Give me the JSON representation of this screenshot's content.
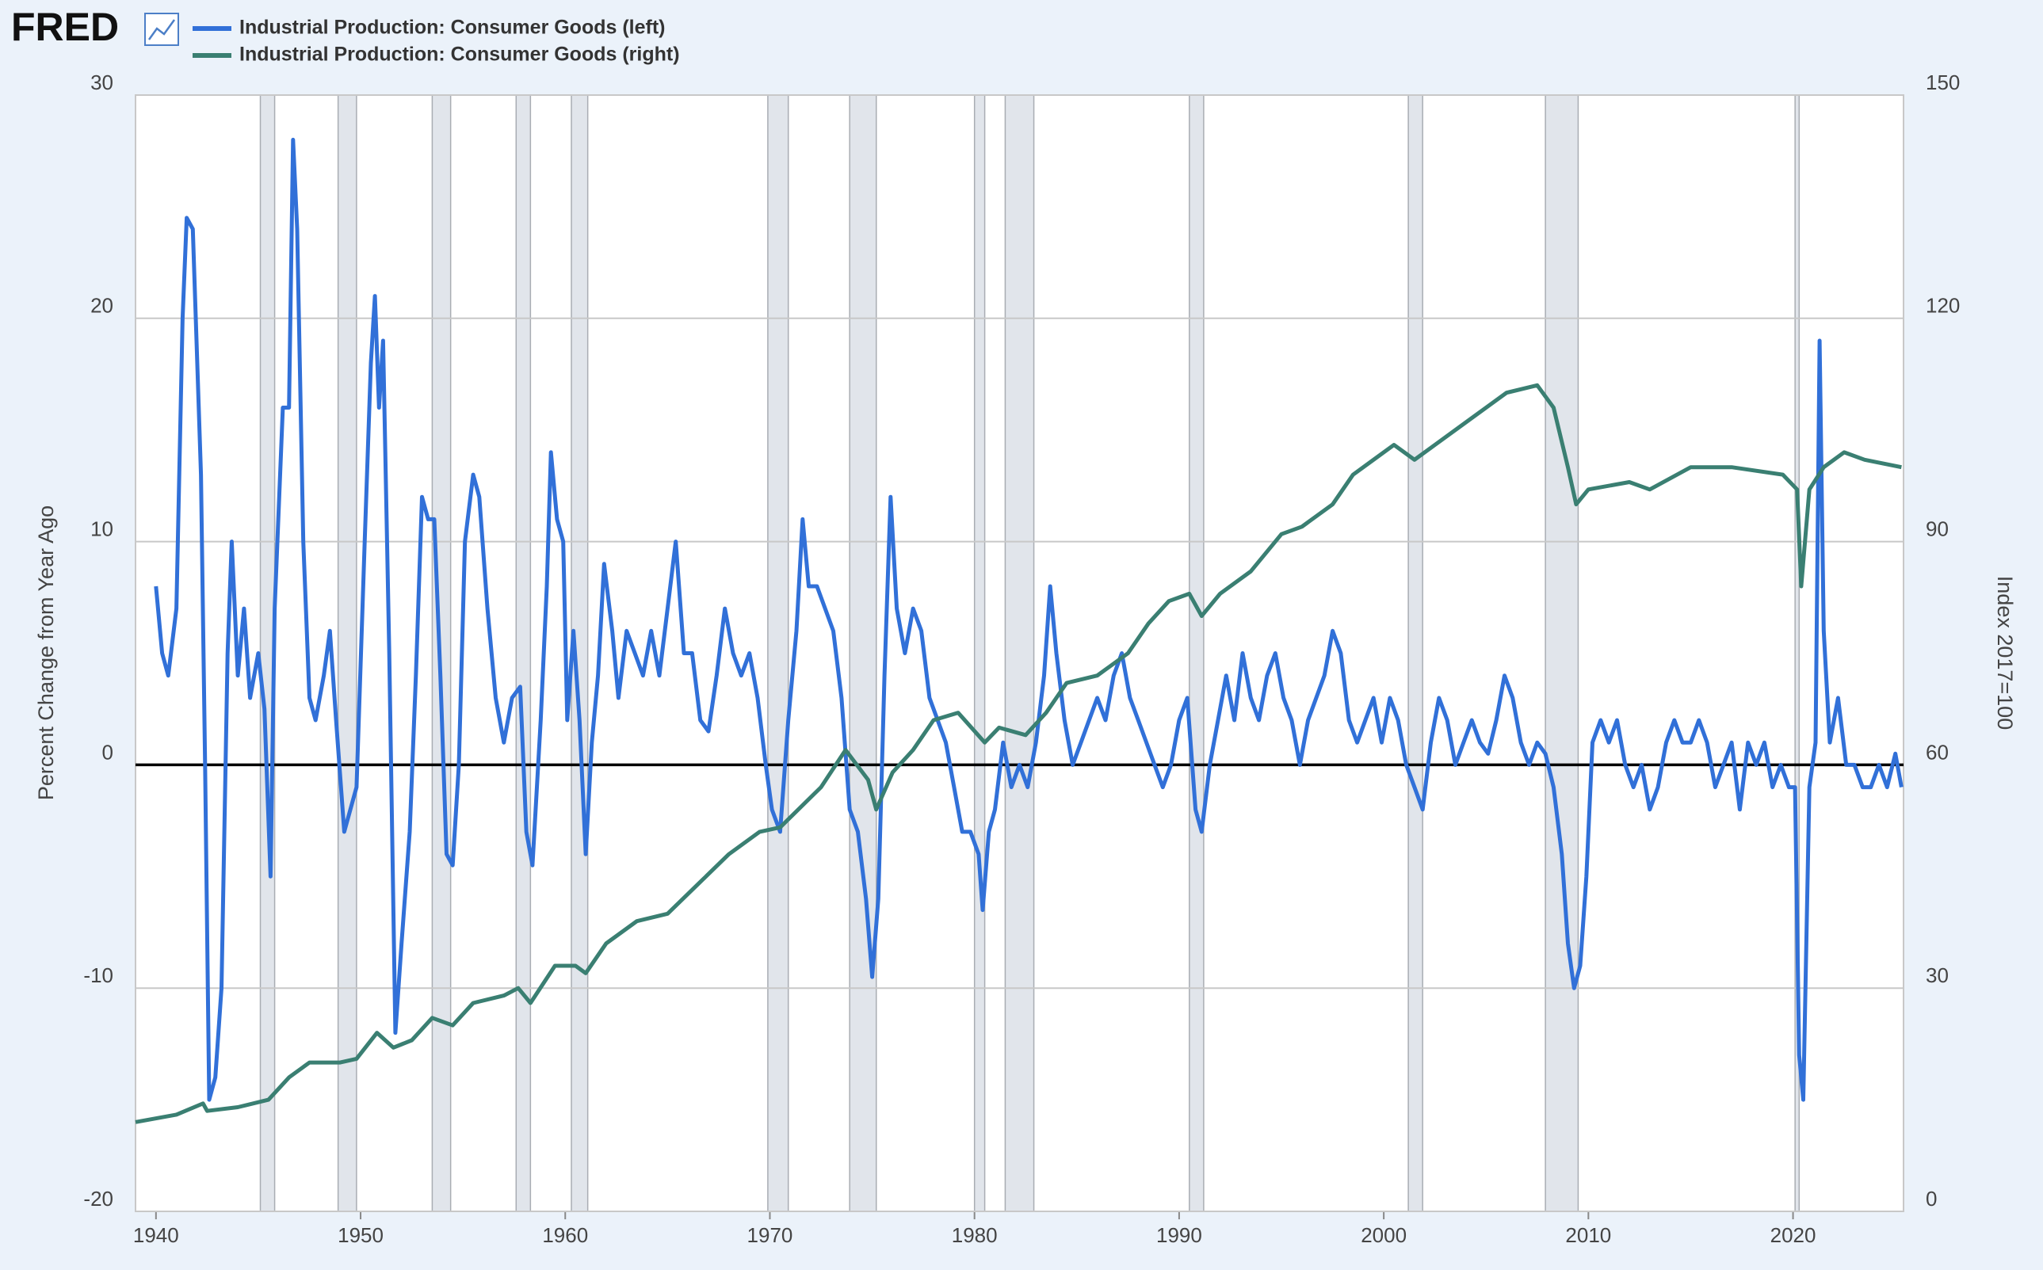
{
  "chart_data": {
    "type": "line",
    "logo": "FRED",
    "ylabel": "Percent Change from Year Ago",
    "y2label": "Index 2017=100",
    "xlim": [
      1939,
      2025.4
    ],
    "xticks": [
      1940,
      1950,
      1960,
      1970,
      1980,
      1990,
      2000,
      2010,
      2020
    ],
    "ylim": [
      -20,
      30
    ],
    "yticks": [
      -20,
      -10,
      0,
      10,
      20,
      30
    ],
    "y2lim": [
      0,
      150
    ],
    "y2ticks": [
      0,
      30,
      60,
      90,
      120,
      150
    ],
    "grid": true,
    "zero_line": true,
    "legend": "top-left",
    "recessions": [
      [
        1945.1,
        1945.8
      ],
      [
        1948.9,
        1949.8
      ],
      [
        1953.5,
        1954.4
      ],
      [
        1957.6,
        1958.3
      ],
      [
        1960.3,
        1961.1
      ],
      [
        1969.9,
        1970.9
      ],
      [
        1973.9,
        1975.2
      ],
      [
        1980.0,
        1980.5
      ],
      [
        1981.5,
        1982.9
      ],
      [
        1990.5,
        1991.2
      ],
      [
        2001.2,
        2001.9
      ],
      [
        2007.9,
        2009.5
      ],
      [
        2020.1,
        2020.3
      ]
    ],
    "series": [
      {
        "name": "Industrial Production: Consumer Goods (left)",
        "color": "#3170d8",
        "axis": "y",
        "x": [
          1940.0,
          1940.3,
          1940.6,
          1941.0,
          1941.3,
          1941.5,
          1941.8,
          1942.2,
          1942.4,
          1942.6,
          1942.9,
          1943.2,
          1943.5,
          1943.7,
          1944.0,
          1944.3,
          1944.6,
          1945.0,
          1945.3,
          1945.6,
          1945.8,
          1946.2,
          1946.5,
          1946.7,
          1946.9,
          1947.2,
          1947.5,
          1947.8,
          1948.2,
          1948.5,
          1948.8,
          1949.2,
          1949.5,
          1949.8,
          1950.2,
          1950.5,
          1950.7,
          1950.9,
          1951.1,
          1951.4,
          1951.7,
          1952.0,
          1952.4,
          1952.7,
          1953.0,
          1953.3,
          1953.6,
          1953.9,
          1954.2,
          1954.5,
          1954.8,
          1955.1,
          1955.5,
          1955.8,
          1956.2,
          1956.6,
          1957.0,
          1957.4,
          1957.8,
          1958.1,
          1958.4,
          1958.8,
          1959.1,
          1959.3,
          1959.6,
          1959.9,
          1960.1,
          1960.4,
          1960.7,
          1961.0,
          1961.3,
          1961.6,
          1961.9,
          1962.3,
          1962.6,
          1963.0,
          1963.4,
          1963.8,
          1964.2,
          1964.6,
          1965.0,
          1965.4,
          1965.8,
          1966.2,
          1966.6,
          1967.0,
          1967.4,
          1967.8,
          1968.2,
          1968.6,
          1969.0,
          1969.4,
          1969.8,
          1970.1,
          1970.5,
          1970.9,
          1971.3,
          1971.6,
          1971.9,
          1972.3,
          1972.7,
          1973.1,
          1973.5,
          1973.9,
          1974.3,
          1974.7,
          1975.0,
          1975.3,
          1975.6,
          1975.9,
          1976.2,
          1976.6,
          1977.0,
          1977.4,
          1977.8,
          1978.2,
          1978.6,
          1979.0,
          1979.4,
          1979.8,
          1980.2,
          1980.4,
          1980.7,
          1981.0,
          1981.4,
          1981.8,
          1982.2,
          1982.6,
          1983.0,
          1983.4,
          1983.7,
          1984.0,
          1984.4,
          1984.8,
          1985.2,
          1985.6,
          1986.0,
          1986.4,
          1986.8,
          1987.2,
          1987.6,
          1988.0,
          1988.4,
          1988.8,
          1989.2,
          1989.6,
          1990.0,
          1990.4,
          1990.8,
          1991.1,
          1991.5,
          1991.9,
          1992.3,
          1992.7,
          1993.1,
          1993.5,
          1993.9,
          1994.3,
          1994.7,
          1995.1,
          1995.5,
          1995.9,
          1996.3,
          1996.7,
          1997.1,
          1997.5,
          1997.9,
          1998.3,
          1998.7,
          1999.1,
          1999.5,
          1999.9,
          2000.3,
          2000.7,
          2001.1,
          2001.5,
          2001.9,
          2002.3,
          2002.7,
          2003.1,
          2003.5,
          2003.9,
          2004.3,
          2004.7,
          2005.1,
          2005.5,
          2005.9,
          2006.3,
          2006.7,
          2007.1,
          2007.5,
          2007.9,
          2008.3,
          2008.7,
          2009.0,
          2009.3,
          2009.6,
          2009.9,
          2010.2,
          2010.6,
          2011.0,
          2011.4,
          2011.8,
          2012.2,
          2012.6,
          2013.0,
          2013.4,
          2013.8,
          2014.2,
          2014.6,
          2015.0,
          2015.4,
          2015.8,
          2016.2,
          2016.6,
          2017.0,
          2017.4,
          2017.8,
          2018.2,
          2018.6,
          2019.0,
          2019.4,
          2019.8,
          2020.1,
          2020.3,
          2020.5,
          2020.8,
          2021.1,
          2021.3,
          2021.5,
          2021.8,
          2022.2,
          2022.6,
          2023.0,
          2023.4,
          2023.8,
          2024.2,
          2024.6,
          2025.0,
          2025.3
        ],
        "values": [
          8,
          5,
          4,
          7,
          20,
          24.5,
          24,
          13,
          0,
          -15,
          -14,
          -10,
          5,
          10,
          4,
          7,
          3,
          5,
          2.5,
          -5,
          7,
          16,
          16,
          28,
          24,
          10,
          3,
          2,
          4,
          6,
          2,
          -3,
          -2,
          -1,
          10,
          18,
          21,
          16,
          19,
          5,
          -12,
          -8,
          -3,
          4,
          12,
          11,
          11,
          4,
          -4,
          -4.5,
          0,
          10,
          13,
          12,
          7,
          3,
          1,
          3,
          3.5,
          -3,
          -4.5,
          2,
          8,
          14,
          11,
          10,
          2,
          6,
          2,
          -4,
          1,
          4,
          9,
          6,
          3,
          6,
          5,
          4,
          6,
          4,
          7,
          10,
          5,
          5,
          2,
          1.5,
          4,
          7,
          5,
          4,
          5,
          3,
          0,
          -2,
          -3,
          2,
          6,
          11,
          8,
          8,
          7,
          6,
          3,
          -2,
          -3,
          -6,
          -9.5,
          -6,
          4,
          12,
          7,
          5,
          7,
          6,
          3,
          2,
          1,
          -1,
          -3,
          -3,
          -4,
          -6.5,
          -3,
          -2,
          1,
          -1,
          0,
          -1,
          1,
          4,
          8,
          5,
          2,
          0,
          1,
          2,
          3,
          2,
          4,
          5,
          3,
          2,
          1,
          0,
          -1,
          0,
          2,
          3,
          -2,
          -3,
          0,
          2,
          4,
          2,
          5,
          3,
          2,
          4,
          5,
          3,
          2,
          0,
          2,
          3,
          4,
          6,
          5,
          2,
          1,
          2,
          3,
          1,
          3,
          2,
          0,
          -1,
          -2,
          1,
          3,
          2,
          0,
          1,
          2,
          1,
          0.5,
          2,
          4,
          3,
          1,
          0,
          1,
          0.5,
          -1,
          -4,
          -8,
          -10,
          -9,
          -5,
          1,
          2,
          1,
          2,
          0,
          -1,
          0,
          -2,
          -1,
          1,
          2,
          1,
          1,
          2,
          1,
          -1,
          0,
          1,
          -2,
          1,
          0,
          1,
          -1,
          0,
          -1,
          -1,
          -13,
          -15,
          -1,
          1,
          19,
          6,
          1,
          3,
          0,
          0,
          -1,
          -1,
          0,
          -1,
          0.5,
          -1
        ]
      },
      {
        "name": "Industrial Production: Consumer Goods (right)",
        "color": "#3a7f72",
        "axis": "y2",
        "x": [
          1939,
          1941,
          1942.3,
          1942.5,
          1944,
          1945.5,
          1946.5,
          1947.5,
          1949,
          1949.8,
          1950.8,
          1951.6,
          1952.5,
          1953.5,
          1954.5,
          1955.5,
          1957,
          1957.7,
          1958.3,
          1959.5,
          1960.5,
          1961,
          1962,
          1963.5,
          1965,
          1966.5,
          1968,
          1969.5,
          1970.5,
          1972.5,
          1973.7,
          1974.8,
          1975.2,
          1976,
          1977,
          1978,
          1979.2,
          1980.5,
          1981.2,
          1982.5,
          1983.5,
          1984.5,
          1986,
          1987.5,
          1988.5,
          1989.5,
          1990.5,
          1991.1,
          1992,
          1993.5,
          1995,
          1996,
          1997.5,
          1998.5,
          1999.5,
          2000.5,
          2001.5,
          2002.5,
          2004,
          2006,
          2007.5,
          2008.3,
          2009.0,
          2009.4,
          2010,
          2012,
          2013,
          2015,
          2017,
          2019.5,
          2020.2,
          2020.4,
          2020.8,
          2021.5,
          2022.5,
          2023.5,
          2025.3
        ],
        "values": [
          12,
          13,
          14.5,
          13.5,
          14,
          15,
          18,
          20,
          20,
          20.5,
          24,
          22,
          23,
          26,
          25,
          28,
          29,
          30,
          28,
          33,
          33,
          32,
          36,
          39,
          40,
          44,
          48,
          51,
          51.6,
          57,
          62,
          58,
          54,
          59,
          62,
          66,
          67,
          63,
          65,
          64,
          67,
          71,
          72,
          75,
          79,
          82,
          83,
          80,
          83,
          86,
          91,
          92,
          95,
          99,
          101,
          103,
          101,
          103,
          106,
          110,
          111,
          108,
          100,
          95,
          97,
          98,
          97,
          100,
          100,
          99,
          97,
          84,
          97,
          100,
          102,
          101,
          100
        ]
      }
    ]
  }
}
